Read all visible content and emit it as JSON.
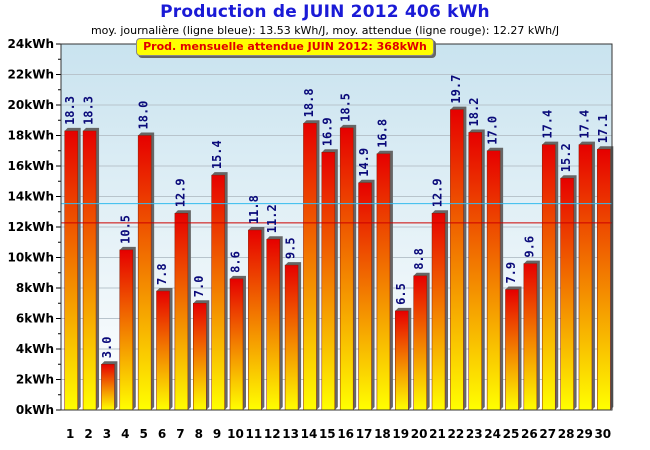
{
  "title": "Production de JUIN 2012  406 kWh",
  "subtitle": "moy. journalière (ligne bleue): 13.53 kWh/J,   moy. attendue (ligne rouge): 12.27 kWh/J",
  "target_text": "Prod. mensuelle attendue JUIN 2012: 368kWh",
  "colors": {
    "bar_top": "#e60000",
    "bar_bottom": "#ffff00",
    "bar_side": "#666666",
    "avg_line": "#33bbee",
    "expected_line": "#cc0000",
    "background_top": "#c9e3ef",
    "background_bottom": "#ffffff"
  },
  "chart_data": {
    "type": "bar",
    "categories": [
      "1",
      "2",
      "3",
      "4",
      "5",
      "6",
      "7",
      "8",
      "9",
      "10",
      "11",
      "12",
      "13",
      "14",
      "15",
      "16",
      "17",
      "18",
      "19",
      "20",
      "21",
      "22",
      "23",
      "24",
      "25",
      "26",
      "27",
      "28",
      "29",
      "30"
    ],
    "values": [
      18.3,
      18.3,
      3.0,
      10.5,
      18.0,
      7.8,
      12.9,
      7.0,
      15.4,
      8.6,
      11.8,
      11.2,
      9.5,
      18.8,
      16.9,
      18.5,
      14.9,
      16.8,
      6.5,
      8.8,
      12.9,
      19.7,
      18.2,
      17.0,
      7.9,
      9.6,
      17.4,
      15.2,
      17.4,
      17.1
    ],
    "value_labels": [
      "18.3",
      "18.3",
      "3.0",
      "10.5",
      "18.0",
      "7.8",
      "12.9",
      "7.0",
      "15.4",
      "8.6",
      "11.8",
      "11.2",
      "9.5",
      "18.8",
      "16.9",
      "18.5",
      "14.9",
      "16.8",
      "6.5",
      "8.8",
      "12.9",
      "19.7",
      "18.2",
      "17.0",
      "7.9",
      "9.6",
      "17.4",
      "15.2",
      "17.4",
      "17.1"
    ],
    "ylim": [
      0,
      24
    ],
    "yticks": [
      0,
      2,
      4,
      6,
      8,
      10,
      12,
      14,
      16,
      18,
      20,
      22,
      24
    ],
    "ytick_labels": [
      "0kWh",
      "2kWh",
      "4kWh",
      "6kWh",
      "8kWh",
      "10kWh",
      "12kWh",
      "14kWh",
      "16kWh",
      "18kWh",
      "20kWh",
      "22kWh",
      "24kWh"
    ],
    "reference_lines": [
      {
        "value": 13.53,
        "color": "#33bbee"
      },
      {
        "value": 12.27,
        "color": "#cc0000"
      }
    ],
    "grid": true
  }
}
